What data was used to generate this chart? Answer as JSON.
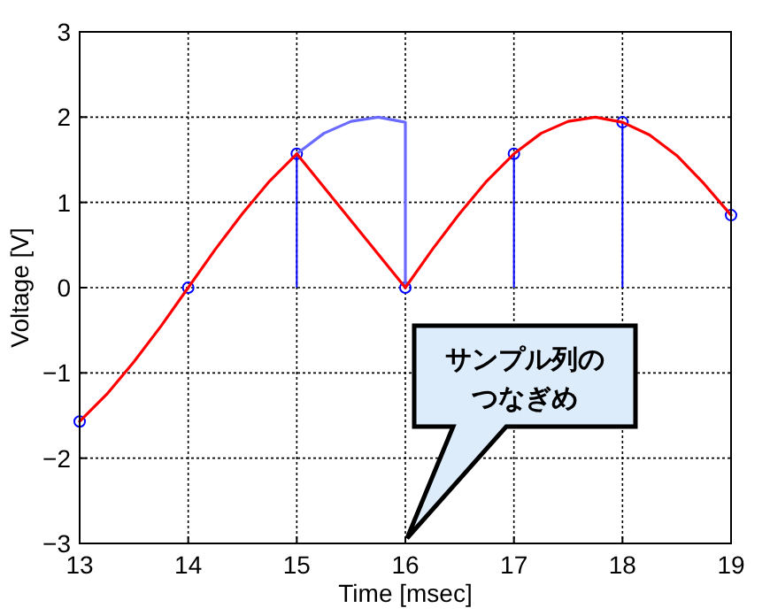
{
  "chart_data": {
    "type": "line",
    "xlabel": "Time [msec]",
    "ylabel": "Voltage [V]",
    "xlim": [
      13,
      19
    ],
    "xticks": [
      13,
      14,
      15,
      16,
      17,
      18,
      19
    ],
    "ylim": [
      -3,
      3
    ],
    "yticks": [
      {
        "value": -3,
        "label": "−3"
      },
      {
        "value": -2,
        "label": "−2"
      },
      {
        "value": -1,
        "label": "−1"
      },
      0,
      1,
      2,
      3
    ],
    "grid": true,
    "series": [
      {
        "type": "lollipop",
        "color": "#0000ff",
        "marker": "circle",
        "x": [
          13,
          14,
          15,
          16,
          17,
          18,
          19
        ],
        "values": [
          -1.57,
          0,
          1.57,
          0,
          1.57,
          1.94,
          0.85
        ]
      },
      {
        "color": "#6a6aff",
        "x": [
          15,
          15.25,
          15.5,
          15.75,
          16,
          16
        ],
        "values": [
          1.57,
          1.81,
          1.95,
          2.0,
          1.94,
          0
        ]
      },
      {
        "color": "#ff0000",
        "x": [
          13,
          13.25,
          13.5,
          13.75,
          14,
          14.25,
          14.5,
          14.75,
          15,
          16,
          16.25,
          16.5,
          16.75,
          17,
          17.25,
          17.5,
          17.75,
          18,
          18.25,
          18.5,
          18.75,
          19
        ],
        "values": [
          -1.57,
          -1.25,
          -0.87,
          -0.45,
          0,
          0.45,
          0.87,
          1.25,
          1.57,
          0,
          0.45,
          0.87,
          1.25,
          1.57,
          1.81,
          1.95,
          2.0,
          1.94,
          1.79,
          1.55,
          1.22,
          0.85
        ]
      }
    ],
    "annotations": [
      "サンプル列のつなぎめ"
    ]
  }
}
